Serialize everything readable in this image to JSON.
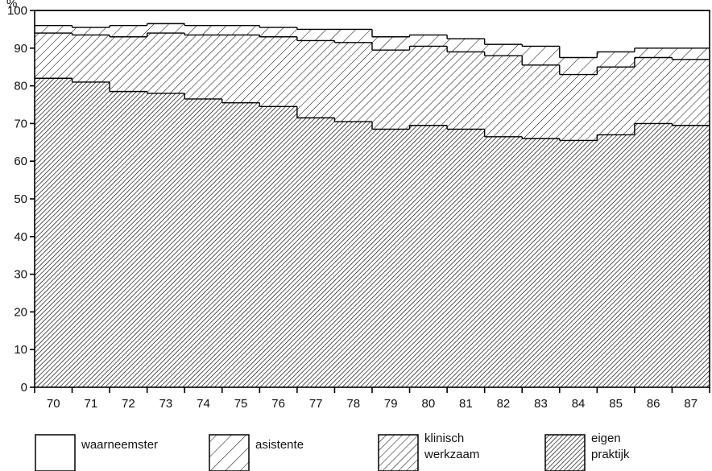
{
  "chart_data": {
    "type": "area",
    "unit_label": "%",
    "categories": [
      "70",
      "71",
      "72",
      "73",
      "74",
      "75",
      "76",
      "77",
      "78",
      "79",
      "80",
      "81",
      "82",
      "83",
      "84",
      "85",
      "86",
      "87"
    ],
    "ylim": [
      0,
      100
    ],
    "yticks": [
      0,
      10,
      20,
      30,
      40,
      50,
      60,
      70,
      80,
      90,
      100
    ],
    "stacking": "cumulative",
    "series": [
      {
        "name": "eigen praktijk",
        "hatch": "dense",
        "values": [
          82,
          81,
          78.5,
          78,
          76.5,
          75.5,
          74.5,
          71.5,
          70.5,
          68.5,
          69.5,
          68.5,
          66.5,
          66,
          65.5,
          67,
          70,
          69.5
        ]
      },
      {
        "name": "klinisch werkzaam",
        "hatch": "medium",
        "cumulative_values": [
          94,
          93.5,
          93,
          94,
          93.5,
          93.5,
          93,
          92,
          91.5,
          89.5,
          90.5,
          89,
          88,
          85.5,
          83,
          85,
          87.5,
          87
        ]
      },
      {
        "name": "asistente",
        "hatch": "sparse",
        "cumulative_values": [
          96,
          95.5,
          96,
          96.5,
          96,
          96,
          95.5,
          95,
          95,
          93,
          93.5,
          92.5,
          91,
          90.5,
          87.5,
          89,
          90,
          90
        ]
      },
      {
        "name": "waarneemster",
        "hatch": "none",
        "cumulative_values": [
          100,
          100,
          100,
          100,
          100,
          100,
          100,
          100,
          100,
          100,
          100,
          100,
          100,
          100,
          100,
          100,
          100,
          100
        ]
      }
    ],
    "legend": [
      {
        "label": "waarneemster",
        "hatch": "none"
      },
      {
        "label": "asistente",
        "hatch": "sparse"
      },
      {
        "label": "klinisch\nwerkzaam",
        "hatch": "medium"
      },
      {
        "label": "eigen\npraktijk",
        "hatch": "dense"
      }
    ],
    "legend_position": "bottom"
  }
}
